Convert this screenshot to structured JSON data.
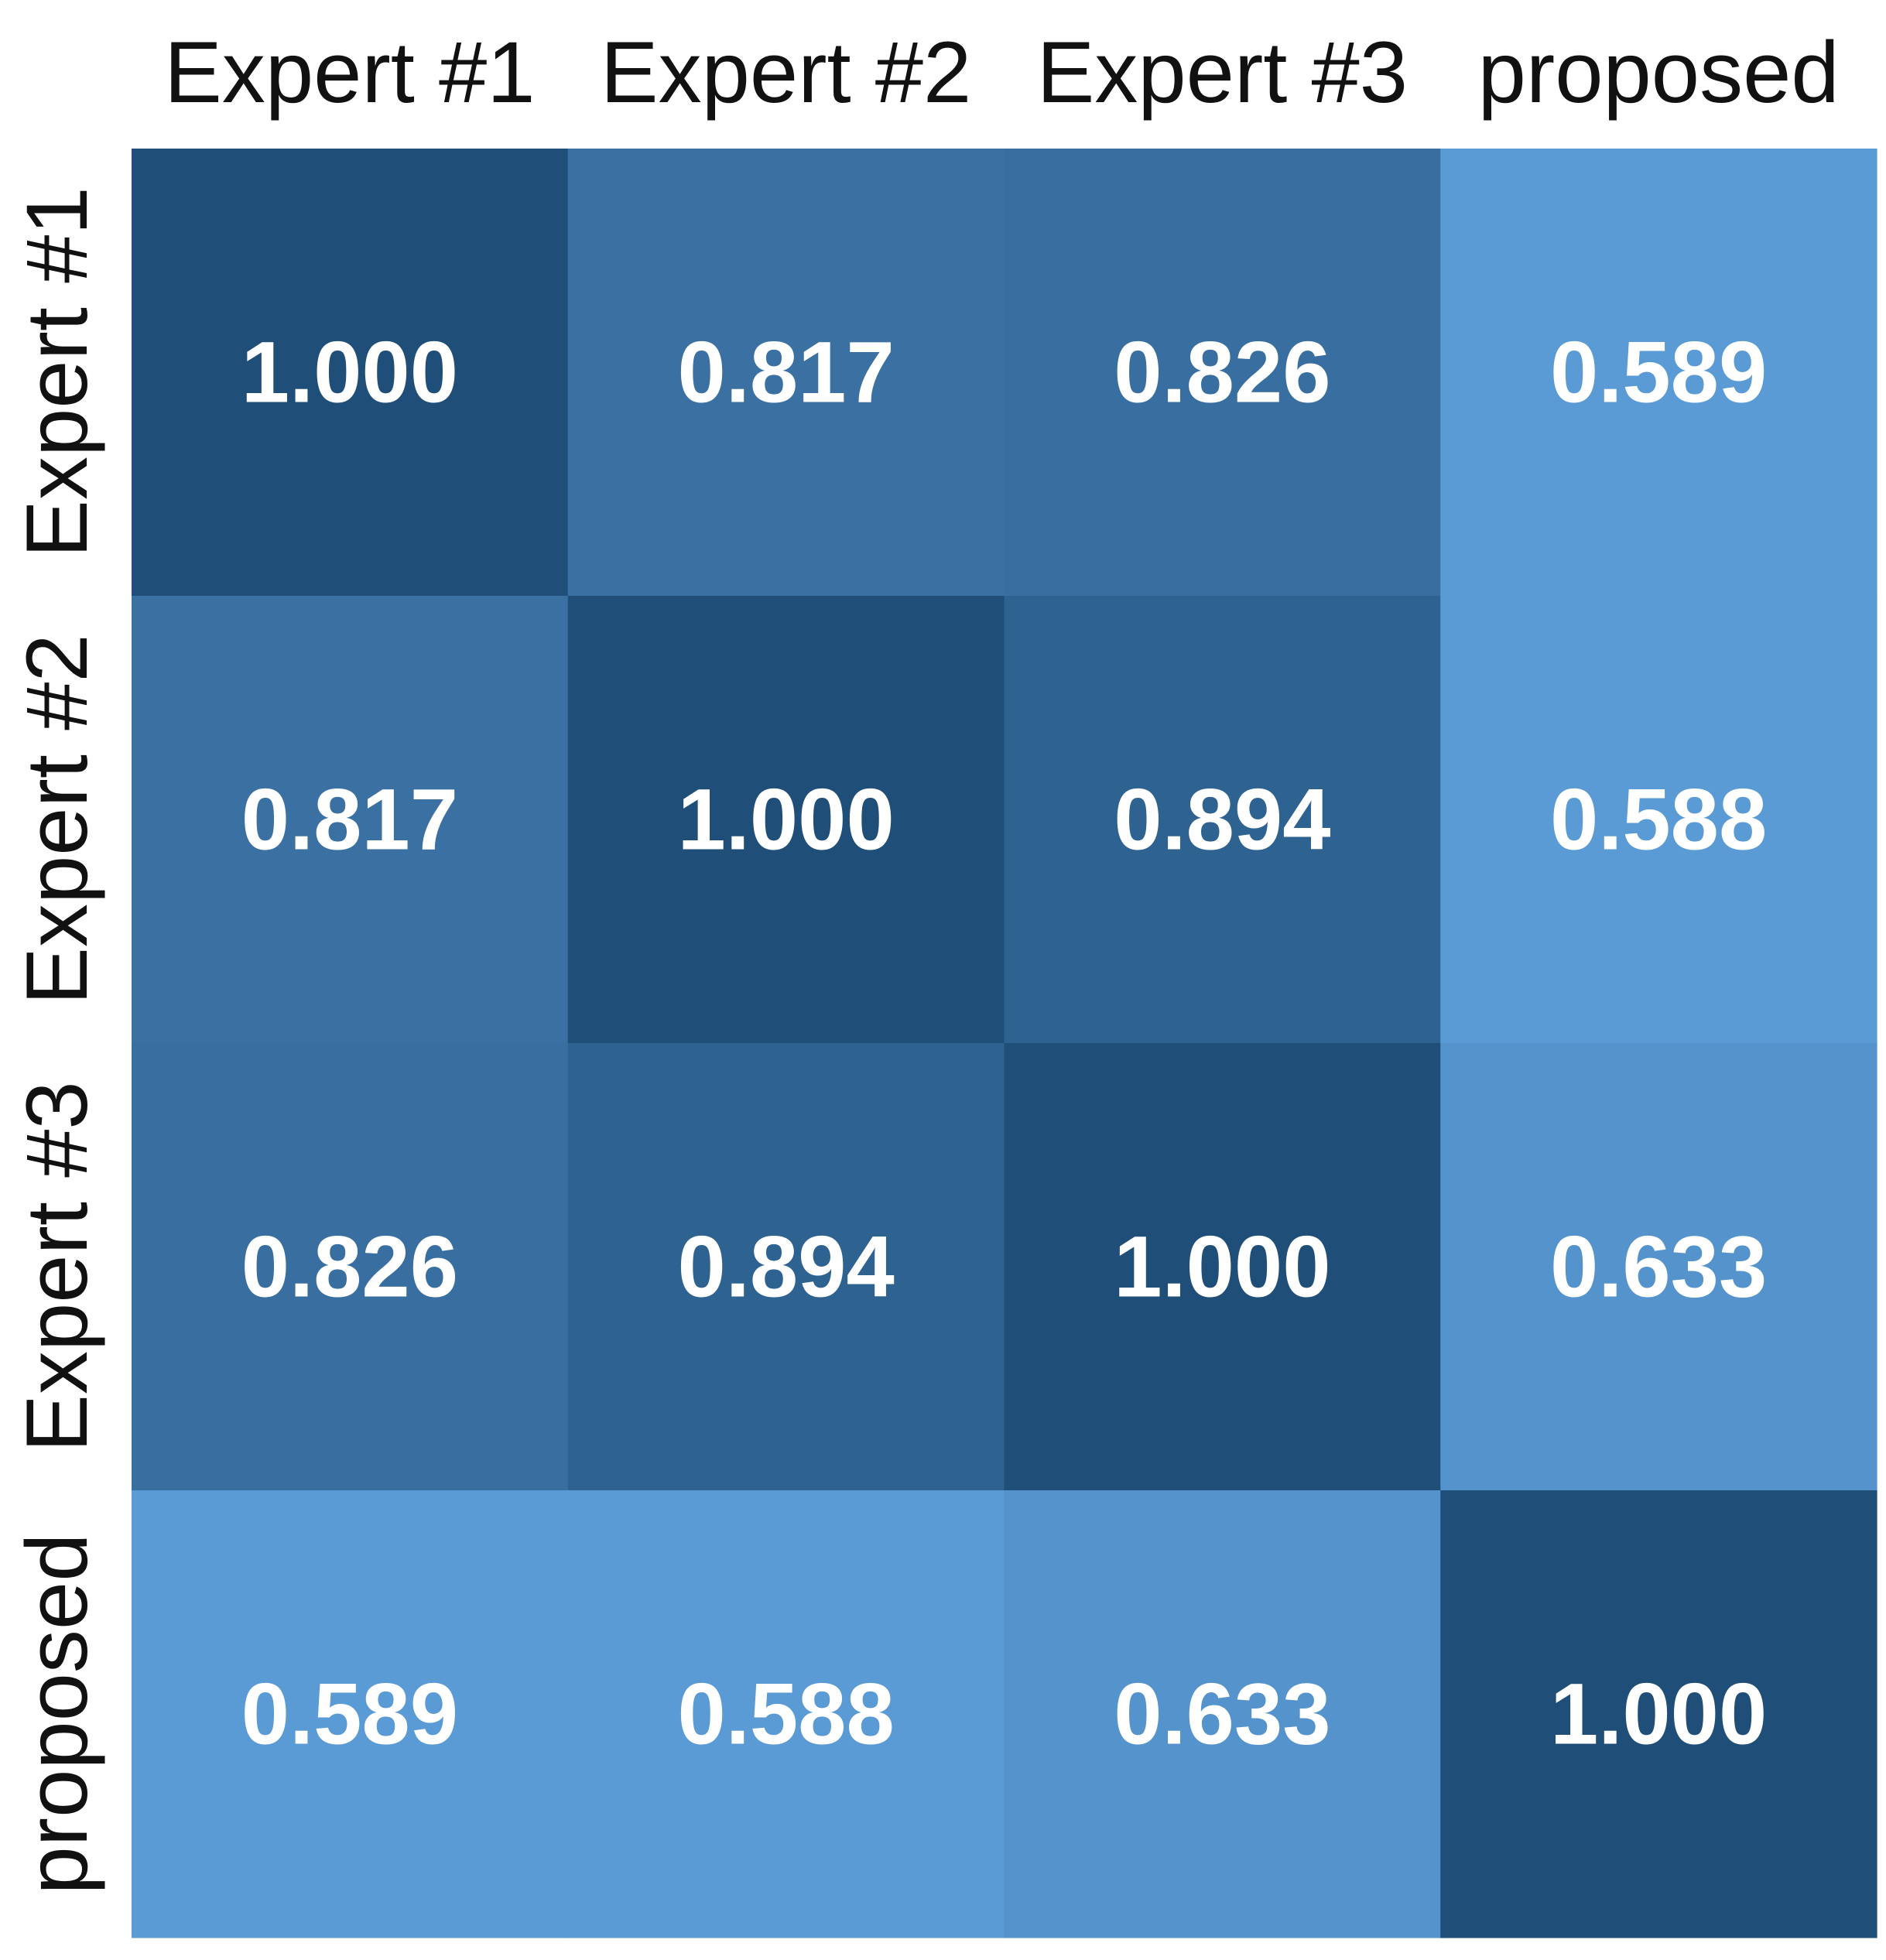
{
  "chart_data": {
    "type": "heatmap",
    "title": "",
    "xlabel": "",
    "ylabel": "",
    "x_labels": [
      "Expert #1",
      "Expert #2",
      "Expert #3",
      "proposed"
    ],
    "y_labels": [
      "Expert #1",
      "Expert #2",
      "Expert #3",
      "proposed"
    ],
    "values": [
      [
        1.0,
        0.817,
        0.826,
        0.589
      ],
      [
        0.817,
        1.0,
        0.894,
        0.588
      ],
      [
        0.826,
        0.894,
        1.0,
        0.633
      ],
      [
        0.589,
        0.588,
        0.633,
        1.0
      ]
    ],
    "value_labels": [
      [
        "1.000",
        "0.817",
        "0.826",
        "0.589"
      ],
      [
        "0.817",
        "1.000",
        "0.894",
        "0.588"
      ],
      [
        "0.826",
        "0.894",
        "1.000",
        "0.633"
      ],
      [
        "0.589",
        "0.588",
        "0.633",
        "1.000"
      ]
    ],
    "colorscale": {
      "low_value": 0.588,
      "low_color": "#5B9BD5",
      "high_value": 1.0,
      "high_color": "#1F4E79"
    },
    "x_axis_position": "top",
    "colorbar": false,
    "grid": false,
    "legend": "none"
  }
}
